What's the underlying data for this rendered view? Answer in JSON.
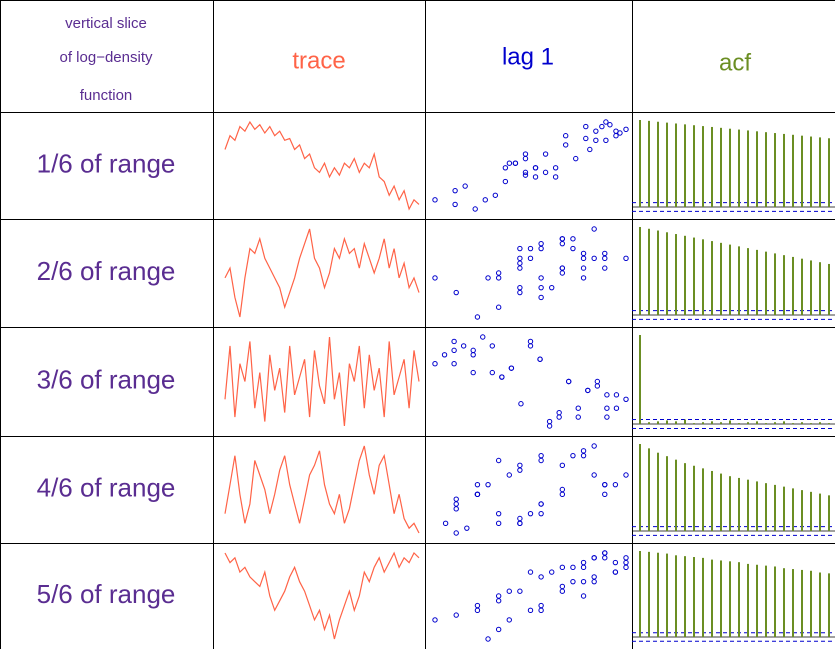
{
  "table": {
    "header_note": [
      "vertical slice",
      "of log−density",
      "function"
    ],
    "columns": [
      "trace",
      "lag 1",
      "acf"
    ],
    "acf_bound": 0.05,
    "rows": [
      {
        "label": "1/6 of range",
        "trace": [
          0.7,
          0.85,
          0.8,
          0.95,
          0.9,
          1,
          0.92,
          0.97,
          0.88,
          0.95,
          0.85,
          0.9,
          0.8,
          0.82,
          0.7,
          0.75,
          0.6,
          0.65,
          0.5,
          0.45,
          0.55,
          0.4,
          0.5,
          0.42,
          0.55,
          0.5,
          0.6,
          0.45,
          0.55,
          0.5,
          0.65,
          0.4,
          0.35,
          0.2,
          0.3,
          0.15,
          0.25,
          0.05,
          0.15,
          0.1
        ],
        "acf": [
          1,
          0.99,
          0.98,
          0.97,
          0.96,
          0.95,
          0.94,
          0.93,
          0.92,
          0.91,
          0.9,
          0.89,
          0.88,
          0.87,
          0.86,
          0.85,
          0.84,
          0.83,
          0.82,
          0.81,
          0.8,
          0.79
        ]
      },
      {
        "label": "2/6 of range",
        "trace": [
          0.5,
          0.6,
          0.3,
          0.1,
          0.5,
          0.8,
          0.75,
          0.9,
          0.7,
          0.6,
          0.5,
          0.4,
          0.2,
          0.35,
          0.5,
          0.7,
          0.85,
          1,
          0.7,
          0.6,
          0.4,
          0.55,
          0.8,
          0.7,
          0.9,
          0.75,
          0.8,
          0.6,
          0.85,
          0.7,
          0.55,
          0.7,
          0.9,
          0.6,
          0.8,
          0.5,
          0.65,
          0.4,
          0.5,
          0.35
        ],
        "acf": [
          1,
          0.98,
          0.96,
          0.94,
          0.92,
          0.9,
          0.88,
          0.86,
          0.84,
          0.82,
          0.8,
          0.78,
          0.76,
          0.74,
          0.72,
          0.7,
          0.68,
          0.66,
          0.64,
          0.62,
          0.6,
          0.58
        ]
      },
      {
        "label": "3/6 of range",
        "trace": [
          0.3,
          0.9,
          0.1,
          0.7,
          0.5,
          0.95,
          0.2,
          0.6,
          0.05,
          0.8,
          0.4,
          0.65,
          0.15,
          0.9,
          0.35,
          0.55,
          0.75,
          0.1,
          0.85,
          0.45,
          0.25,
          1,
          0.3,
          0.6,
          0.0,
          0.7,
          0.5,
          0.9,
          0.2,
          0.8,
          0.4,
          0.65,
          0.1,
          0.95,
          0.35,
          0.55,
          0.75,
          0.2,
          0.85,
          0.5
        ],
        "acf": [
          1,
          0.02,
          0.03,
          0.04,
          0.03,
          0.05,
          0.01,
          0.02,
          0.03,
          0.02,
          0.04,
          0.01,
          0.02,
          0.03,
          0.01,
          0.02,
          0.03,
          0.01,
          0.02,
          0.01,
          0.02,
          0.01
        ]
      },
      {
        "label": "4/6 of range",
        "trace": [
          0.3,
          0.6,
          0.9,
          0.5,
          0.2,
          0.4,
          0.85,
          0.7,
          0.55,
          0.3,
          0.5,
          0.75,
          0.9,
          0.6,
          0.4,
          0.2,
          0.45,
          0.7,
          0.8,
          0.95,
          0.6,
          0.4,
          0.3,
          0.5,
          0.2,
          0.35,
          0.6,
          0.85,
          1,
          0.7,
          0.5,
          0.8,
          0.9,
          0.6,
          0.3,
          0.5,
          0.25,
          0.15,
          0.2,
          0.1
        ],
        "acf": [
          1,
          0.95,
          0.9,
          0.86,
          0.82,
          0.78,
          0.75,
          0.72,
          0.69,
          0.66,
          0.63,
          0.61,
          0.59,
          0.57,
          0.55,
          0.53,
          0.51,
          0.49,
          0.47,
          0.45,
          0.43,
          0.41
        ]
      },
      {
        "label": "5/6 of range",
        "trace": [
          0.9,
          0.8,
          0.85,
          0.7,
          0.75,
          0.65,
          0.6,
          0.55,
          0.7,
          0.45,
          0.3,
          0.4,
          0.5,
          0.65,
          0.75,
          0.6,
          0.5,
          0.35,
          0.2,
          0.3,
          0.1,
          0.25,
          0.0,
          0.2,
          0.35,
          0.5,
          0.3,
          0.45,
          0.7,
          0.6,
          0.75,
          0.85,
          0.7,
          0.8,
          0.9,
          0.75,
          0.85,
          0.8,
          0.9,
          0.85
        ],
        "acf": [
          1,
          0.99,
          0.98,
          0.97,
          0.95,
          0.94,
          0.93,
          0.92,
          0.9,
          0.89,
          0.88,
          0.87,
          0.85,
          0.84,
          0.83,
          0.82,
          0.8,
          0.79,
          0.78,
          0.77,
          0.75,
          0.74
        ]
      }
    ]
  }
}
